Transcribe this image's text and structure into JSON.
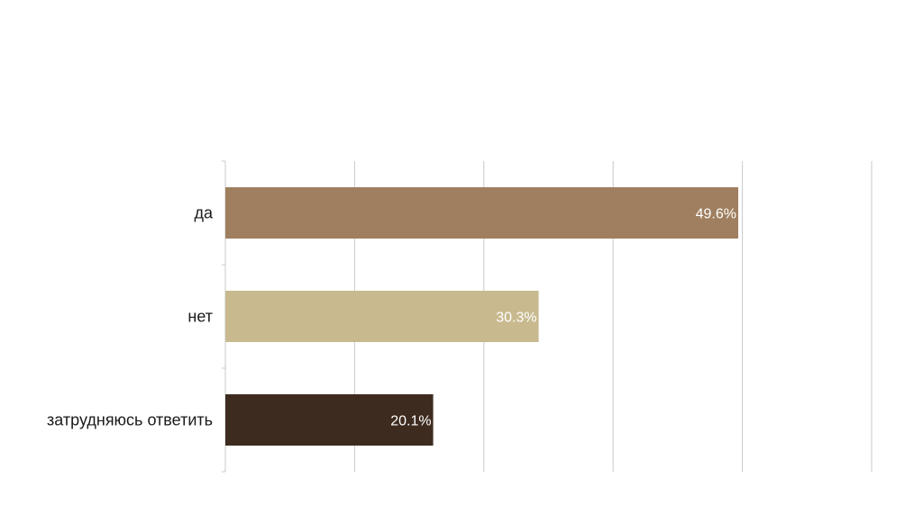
{
  "chart_data": {
    "type": "bar",
    "orientation": "horizontal",
    "categories": [
      "да",
      "нет",
      "затрудняюсь ответить"
    ],
    "values": [
      49.6,
      30.3,
      20.1
    ],
    "value_labels": [
      "49.6%",
      "30.3%",
      "20.1%"
    ],
    "colors": [
      "#9f7f5f",
      "#c8b98e",
      "#3e2b1f"
    ],
    "xlim": [
      0,
      62.5
    ],
    "grid": true,
    "legend": "none"
  }
}
